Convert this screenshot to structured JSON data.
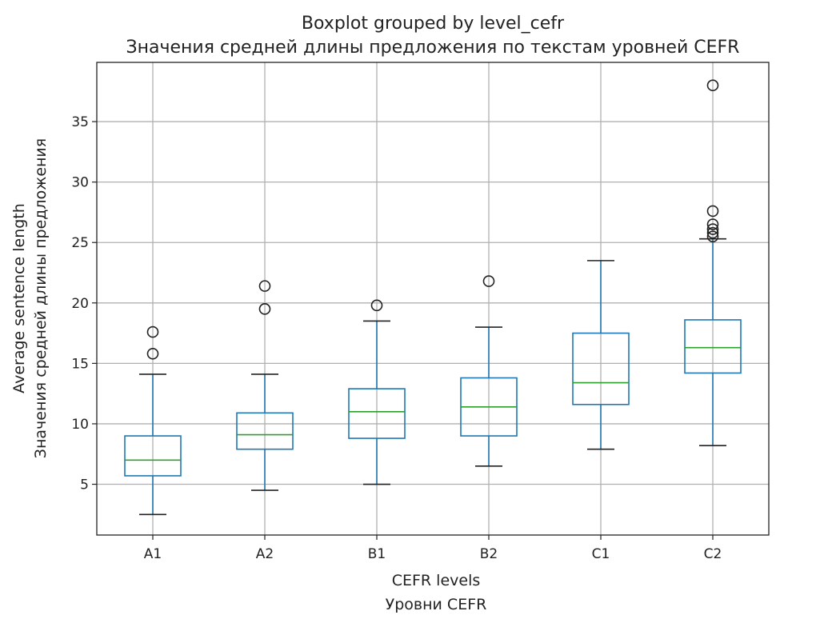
{
  "chart_data": {
    "type": "boxplot",
    "title": "Boxplot grouped by level_cefr",
    "subtitle": "Значения средней длины предложения по текстам уровней CEFR",
    "xlabel": "CEFR levels",
    "xlabel2": "Уровни CEFR",
    "ylabel": "Average sentence length",
    "ylabel2": "Значения средней длины предложения",
    "ylim": [
      0.8,
      39.9
    ],
    "yticks": [
      5,
      10,
      15,
      20,
      25,
      30,
      35
    ],
    "grid": true,
    "categories": [
      "A1",
      "A2",
      "B1",
      "B2",
      "C1",
      "C2"
    ],
    "boxes": [
      {
        "whislo": 2.5,
        "q1": 5.7,
        "med": 7.0,
        "q3": 9.0,
        "whishi": 14.1,
        "fliers": [
          15.8,
          17.6
        ]
      },
      {
        "whislo": 4.5,
        "q1": 7.9,
        "med": 9.1,
        "q3": 10.9,
        "whishi": 14.1,
        "fliers": [
          19.5,
          21.4
        ]
      },
      {
        "whislo": 5.0,
        "q1": 8.8,
        "med": 11.0,
        "q3": 12.9,
        "whishi": 18.5,
        "fliers": [
          19.8
        ]
      },
      {
        "whislo": 6.5,
        "q1": 9.0,
        "med": 11.4,
        "q3": 13.8,
        "whishi": 18.0,
        "fliers": [
          21.8
        ]
      },
      {
        "whislo": 7.9,
        "q1": 11.6,
        "med": 13.4,
        "q3": 17.5,
        "whishi": 23.5,
        "fliers": []
      },
      {
        "whislo": 8.2,
        "q1": 14.2,
        "med": 16.3,
        "q3": 18.6,
        "whishi": 25.3,
        "fliers": [
          25.5,
          25.8,
          26.1,
          26.5,
          27.6,
          38.0
        ]
      }
    ],
    "colors": {
      "box": "#1f77b4",
      "median": "#2ca02c",
      "grid": "#b0b0b0",
      "flier": "#222222"
    }
  }
}
